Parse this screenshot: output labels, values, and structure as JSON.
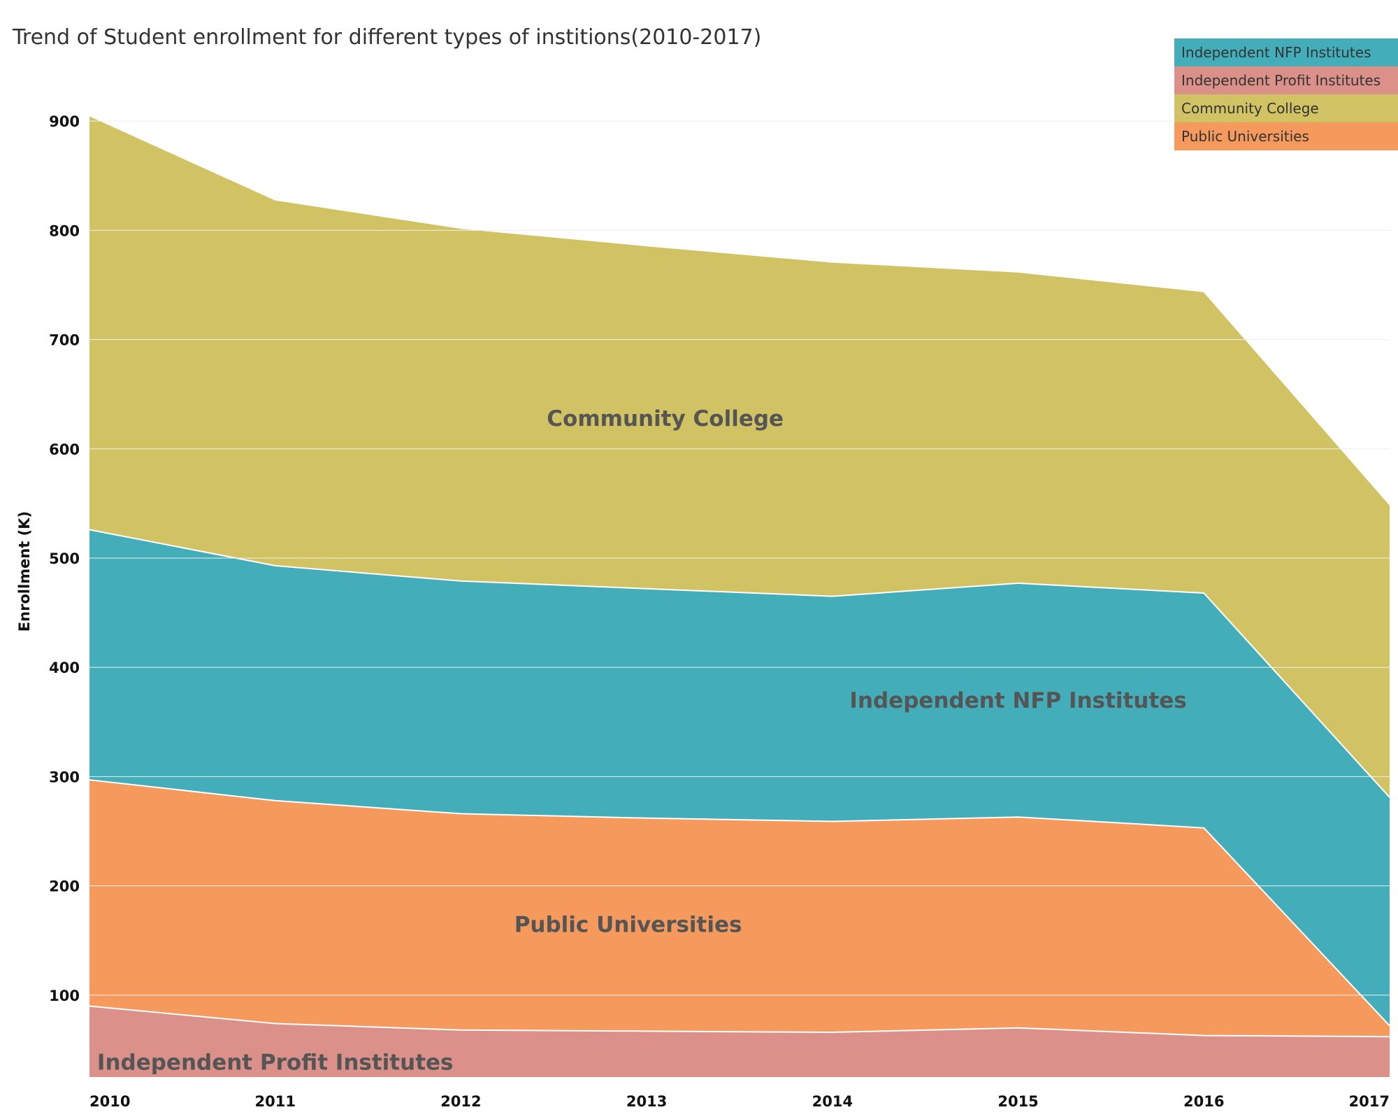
{
  "chart_data": {
    "type": "area",
    "stacked": true,
    "title": "Trend of Student enrollment for different types of institions(2010-2017)",
    "xlabel": "",
    "ylabel": "Enrollment (K)",
    "x": [
      "2010",
      "2011",
      "2012",
      "2013",
      "2014",
      "2015",
      "2016",
      "2017"
    ],
    "y_ticks": [
      100,
      200,
      300,
      400,
      500,
      600,
      700,
      800,
      900
    ],
    "ylim": [
      25,
      950
    ],
    "series": [
      {
        "name": "Independent Profit Institutes",
        "color": "#DB918A",
        "values": [
          90,
          74,
          68,
          67,
          66,
          70,
          63,
          62
        ]
      },
      {
        "name": "Public Universities",
        "color": "#F5995C",
        "values": [
          207,
          204,
          198,
          195,
          193,
          193,
          190,
          10
        ]
      },
      {
        "name": "Independent NFP Institutes",
        "color": "#43AEB9",
        "values": [
          229,
          215,
          213,
          210,
          206,
          214,
          215,
          209
        ]
      },
      {
        "name": "Community College",
        "color": "#D1C364",
        "values": [
          379,
          335,
          323,
          314,
          306,
          285,
          276,
          268
        ]
      }
    ],
    "legend": {
      "position": "top-right",
      "entries": [
        "Independent NFP Institutes",
        "Independent Profit Institutes",
        "Community College",
        "Public Universities"
      ]
    },
    "area_labels": [
      {
        "text": "Community College",
        "series": "Community College"
      },
      {
        "text": "Independent NFP Institutes",
        "series": "Independent NFP Institutes"
      },
      {
        "text": "Public Universities",
        "series": "Public Universities"
      },
      {
        "text": "Independent Profit Institutes",
        "series": "Independent Profit Institutes"
      }
    ],
    "grid": false
  }
}
